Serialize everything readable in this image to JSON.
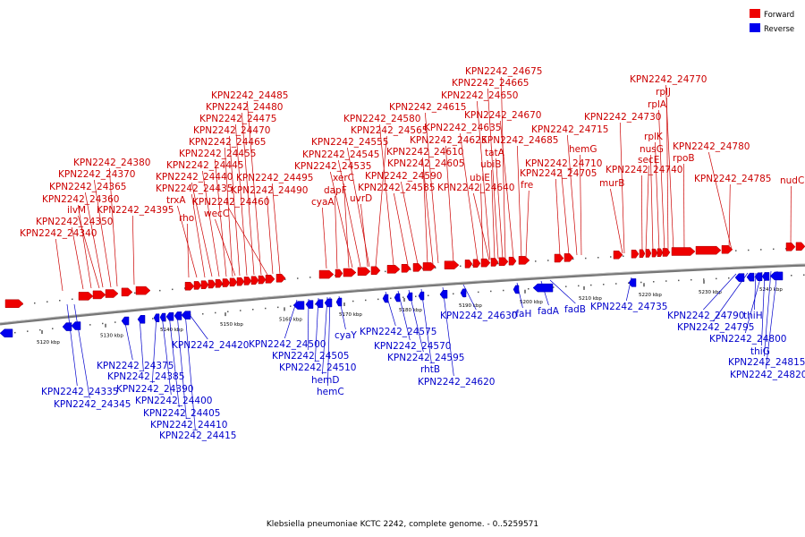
{
  "caption": "Klebsiella pneumoniae KCTC 2242, complete genome. - 0..5259571",
  "legend": [
    {
      "label": "Forward",
      "color": "#ee0000"
    },
    {
      "label": "Reverse",
      "color": "#0000ee"
    }
  ],
  "ticks": [
    "5120 kbp",
    "5130 kbp",
    "5140 kbp",
    "5150 kbp",
    "5160 kbp",
    "5170 kbp",
    "5180 kbp",
    "5190 kbp",
    "5200 kbp",
    "5210 kbp",
    "5220 kbp",
    "5230 kbp",
    "5240 kbp"
  ],
  "forward_genes": [
    "KPN2242_24340",
    "KPN2242_24350",
    "KPN2242_24360",
    "ilvM",
    "KPN2242_24365",
    "KPN2242_24370",
    "KPN2242_24380",
    "KPN2242_24395",
    "rho",
    "trxA",
    "KPN2242_24435",
    "KPN2242_24440",
    "KPN2242_24445",
    "KPN2242_24455",
    "KPN2242_24465",
    "KPN2242_24470",
    "KPN2242_24475",
    "KPN2242_24480",
    "KPN2242_24485",
    "wecC",
    "KPN2242_24460",
    "KPN2242_24490",
    "KPN2242_24495",
    "cyaA",
    "dapF",
    "xerC",
    "KPN2242_24535",
    "KPN2242_24545",
    "KPN2242_24555",
    "KPN2242_24565",
    "KPN2242_24580",
    "uvrD",
    "KPN2242_24585",
    "KPN2242_24590",
    "KPN2242_24605",
    "KPN2242_24610",
    "KPN2242_24625",
    "KPN2242_24615",
    "KPN2242_24635",
    "ubiE",
    "KPN2242_24640",
    "ubiB",
    "tatA",
    "KPN2242_24650",
    "KPN2242_24665",
    "KPN2242_24675",
    "KPN2242_24670",
    "KPN2242_24685",
    "fre",
    "KPN2242_24705",
    "KPN2242_24710",
    "KPN2242_24715",
    "hemG",
    "murB",
    "KPN2242_24730",
    "KPN2242_24740",
    "secE",
    "nusG",
    "rplK",
    "rplA",
    "rplJ",
    "KPN2242_24770",
    "rpoB",
    "KPN2242_24780",
    "KPN2242_24785",
    "nudC"
  ],
  "reverse_genes": [
    "KPN2242_24335",
    "KPN2242_24345",
    "KPN2242_24375",
    "KPN2242_24385",
    "KPN2242_24390",
    "KPN2242_24400",
    "KPN2242_24405",
    "KPN2242_24410",
    "KPN2242_24415",
    "KPN2242_24420",
    "KPN2242_24500",
    "KPN2242_24505",
    "KPN2242_24510",
    "hemD",
    "hemC",
    "cyaY",
    "KPN2242_24575",
    "KPN2242_24570",
    "KPN2242_24595",
    "rhtB",
    "KPN2242_24620",
    "KPN2242_24630",
    "rfaH",
    "fadA",
    "fadB",
    "KPN2242_24735",
    "KPN2242_24790",
    "KPN2242_24795",
    "thiH",
    "KPN2242_24800",
    "thiG",
    "KPN2242_24815",
    "KPN2242_24820"
  ]
}
